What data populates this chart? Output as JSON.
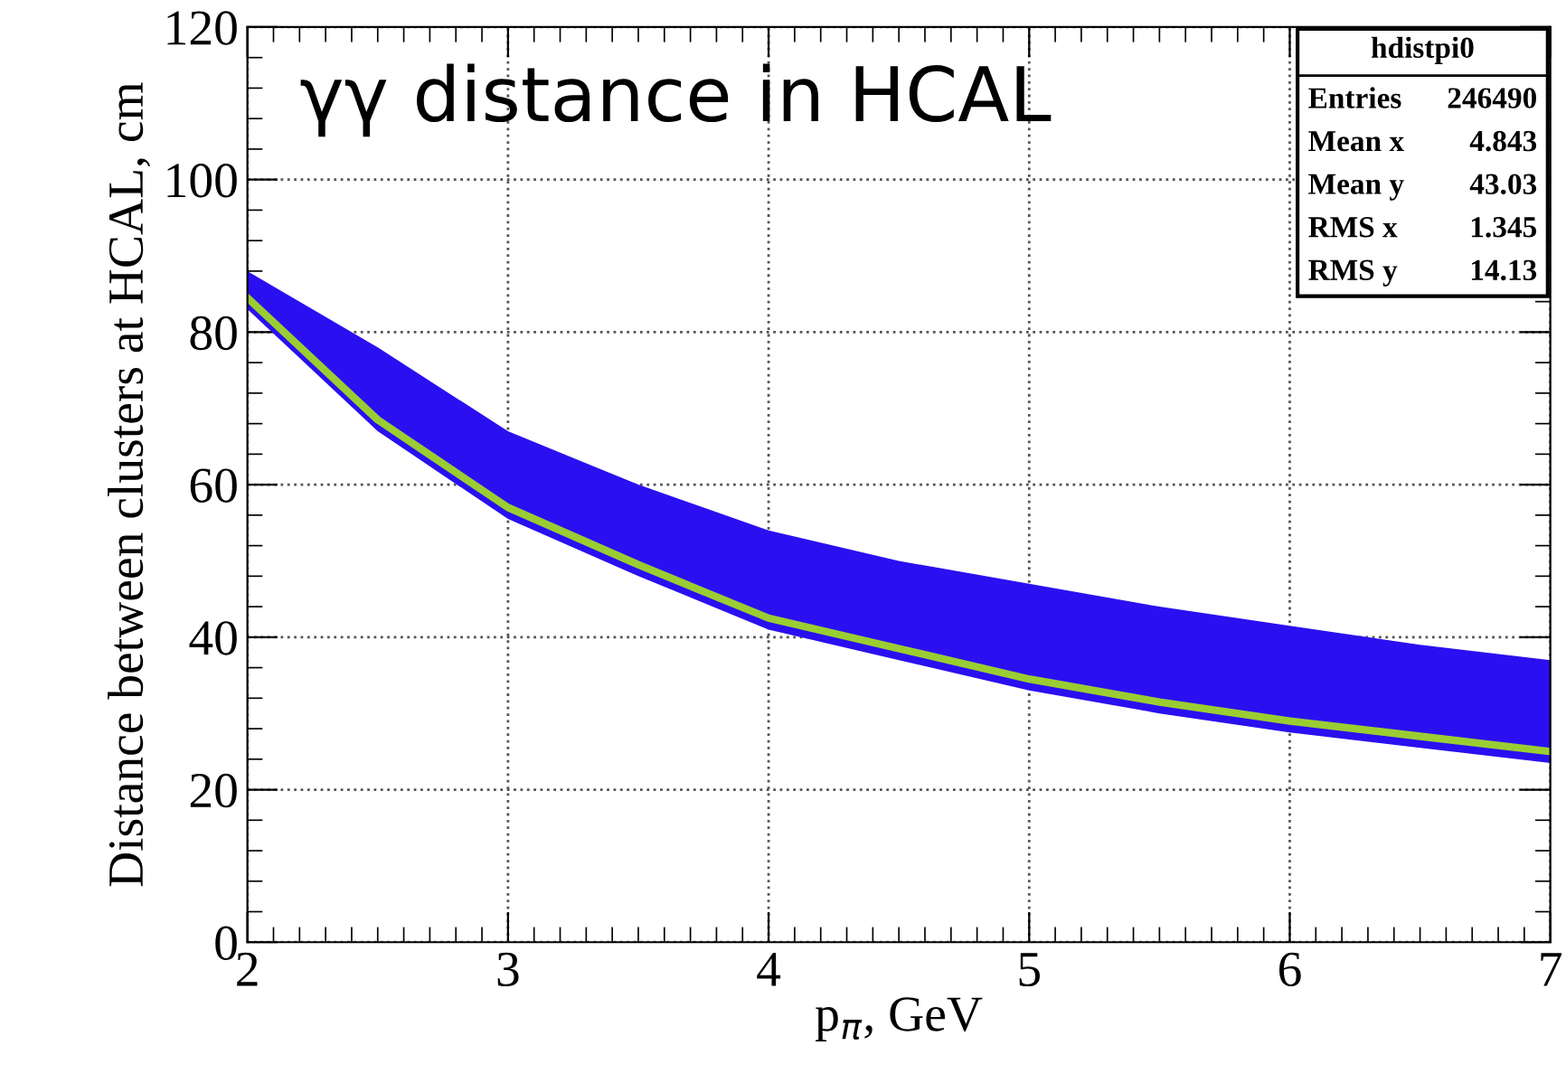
{
  "chart_data": {
    "type": "line",
    "title": "γγ distance in HCAL",
    "xlabel": "p$_{π}$, GeV",
    "ylabel": "Distance between clusters at HCAL, cm",
    "x": [
      2,
      2.5,
      3,
      3.5,
      4,
      4.5,
      5,
      5.5,
      6,
      6.5,
      7
    ],
    "series": [
      {
        "color": "#9acd32",
        "values": [
          84.5,
          68.5,
          57,
          49.5,
          42.5,
          38.5,
          34.5,
          31.5,
          29,
          27,
          25
        ],
        "lower": [
          83,
          67,
          55.5,
          48,
          41,
          37,
          33,
          30,
          27.5,
          25.5,
          23.5
        ],
        "upper": [
          88,
          78,
          67,
          60,
          54,
          50,
          47,
          44,
          41.5,
          39,
          37
        ]
      }
    ],
    "xlim": [
      2,
      7
    ],
    "ylim": [
      0,
      120
    ],
    "xticks": [
      2,
      3,
      4,
      5,
      6,
      7
    ],
    "yticks": [
      0,
      20,
      40,
      60,
      80,
      100,
      120
    ],
    "grid": true,
    "annotations": [
      "hdistpi0",
      "Entries 246490",
      "Mean x 4.843",
      "Mean y 43.03",
      "RMS x 1.345",
      "RMS y 14.13"
    ]
  }
}
